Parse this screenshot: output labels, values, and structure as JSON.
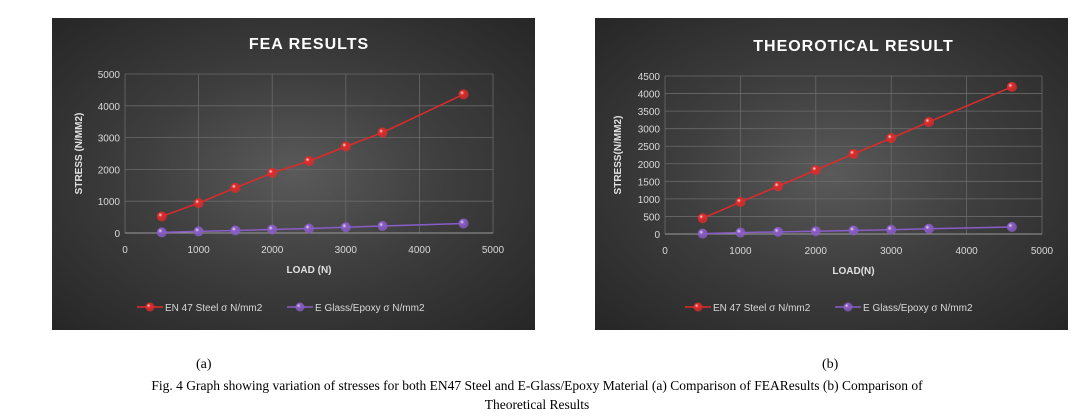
{
  "chart_data": [
    {
      "type": "line",
      "title": "FEA RESULTS",
      "xlabel": "LOAD (N)",
      "ylabel": "STRESS (N/MM2)",
      "xlim": [
        0,
        5000
      ],
      "ylim": [
        0,
        5000
      ],
      "xticks": [
        0,
        1000,
        2000,
        3000,
        4000,
        5000
      ],
      "yticks": [
        0,
        1000,
        2000,
        3000,
        4000,
        5000
      ],
      "grid": true,
      "legend": "bottom",
      "x": [
        500,
        1000,
        1500,
        2000,
        2500,
        3000,
        3500,
        4600
      ],
      "series": [
        {
          "name": "EN 47 Steel σ N/mm2",
          "color": "#e02a2a",
          "values": [
            520,
            940,
            1420,
            1890,
            2260,
            2720,
            3160,
            4360
          ]
        },
        {
          "name": "E Glass/Epoxy σ N/mm2",
          "color": "#8a5cc8",
          "values": [
            20,
            50,
            80,
            110,
            140,
            180,
            220,
            300
          ]
        }
      ]
    },
    {
      "type": "line",
      "title": "THEOROTICAL RESULT",
      "xlabel": "LOAD(N)",
      "ylabel": "STRESS(N/MM2)",
      "xlim": [
        0,
        5000
      ],
      "ylim": [
        0,
        4500
      ],
      "xticks": [
        0,
        1000,
        2000,
        3000,
        4000,
        5000
      ],
      "yticks": [
        0,
        500,
        1000,
        1500,
        2000,
        2500,
        3000,
        3500,
        4000,
        4500
      ],
      "grid": true,
      "legend": "bottom",
      "x": [
        500,
        1000,
        1500,
        2000,
        2500,
        3000,
        3500,
        4600
      ],
      "series": [
        {
          "name": "EN 47 Steel σ N/mm2",
          "color": "#e02a2a",
          "values": [
            450,
            910,
            1360,
            1820,
            2280,
            2730,
            3190,
            4190
          ]
        },
        {
          "name": "E Glass/Epoxy σ N/mm2",
          "color": "#8a5cc8",
          "values": [
            10,
            40,
            60,
            80,
            100,
            120,
            150,
            200
          ]
        }
      ]
    }
  ],
  "captions": {
    "a": "(a)",
    "b": "(b)",
    "line1": "Fig. 4 Graph showing variation of stresses for both EN47 Steel and E-Glass/Epoxy Material (a) Comparison of FEAResults (b) Comparison of",
    "line2": "Theoretical Results"
  }
}
